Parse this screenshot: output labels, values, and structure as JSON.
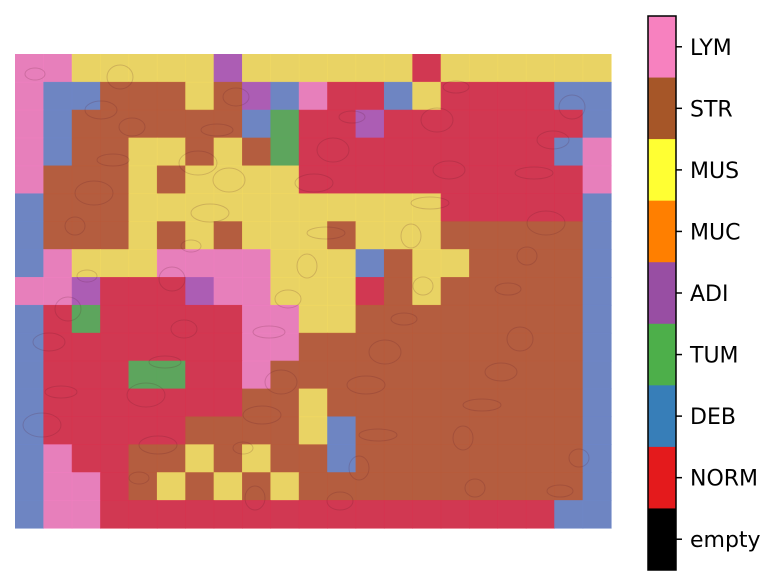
{
  "image": {
    "description_icon": "tissue-classification-heatmap",
    "grid": {
      "cols": 21,
      "rows": 17
    },
    "cell_codes": [
      "LLMMMMMAMMMMMMNMMMMMM",
      "LDDSSSMSADLNNDMNNNNDD",
      "LDSSSSSSDTNNANNNNNNND",
      "LDSSMMSMSTNNNNNNNNNDL",
      "LSSSMSMMMMNNNNNNNNNNL",
      "DSSSMMMMMMMMMMMNNNNND",
      "DSSSMSMSMMMSMMMSSSSSD",
      "DLMMMLLLLMMMDSMMSSSSD",
      "LLANNNALLMMMNSMSSSSSD",
      "DNTNNNNNLLMMSSSSSSSSD",
      "DNNNNNNNLLSSSSSSSSSSD",
      "DNNNTTNNLSSSSSSSSSSSD",
      "DNNNNNNNSSMSSSSSSSSSD",
      "DNNNNNSSSSMDSSSSSSSSD",
      "DLNNSSMSMSSDSSSSSSSSD",
      "DLLNSMSMSMSSSSSSSSSSD",
      "DLLNNNNNNNNNNNNNNNNDD"
    ]
  },
  "legend": {
    "title": "",
    "items": [
      {
        "label": "LYM",
        "color": "#f781bf"
      },
      {
        "label": "STR",
        "color": "#a65628"
      },
      {
        "label": "MUS",
        "color": "#ffff33"
      },
      {
        "label": "MUC",
        "color": "#ff7f00"
      },
      {
        "label": "ADI",
        "color": "#984ea3"
      },
      {
        "label": "TUM",
        "color": "#4daf4a"
      },
      {
        "label": "DEB",
        "color": "#377eb8"
      },
      {
        "label": "NORM",
        "color": "#e41a1c"
      },
      {
        "label": "empty",
        "color": "#000000"
      }
    ]
  },
  "colors": {
    "background_gray": "#7a7a7a",
    "tissue_pink": "#e8b7c6",
    "tissue_yellow": "#e8d37a"
  }
}
